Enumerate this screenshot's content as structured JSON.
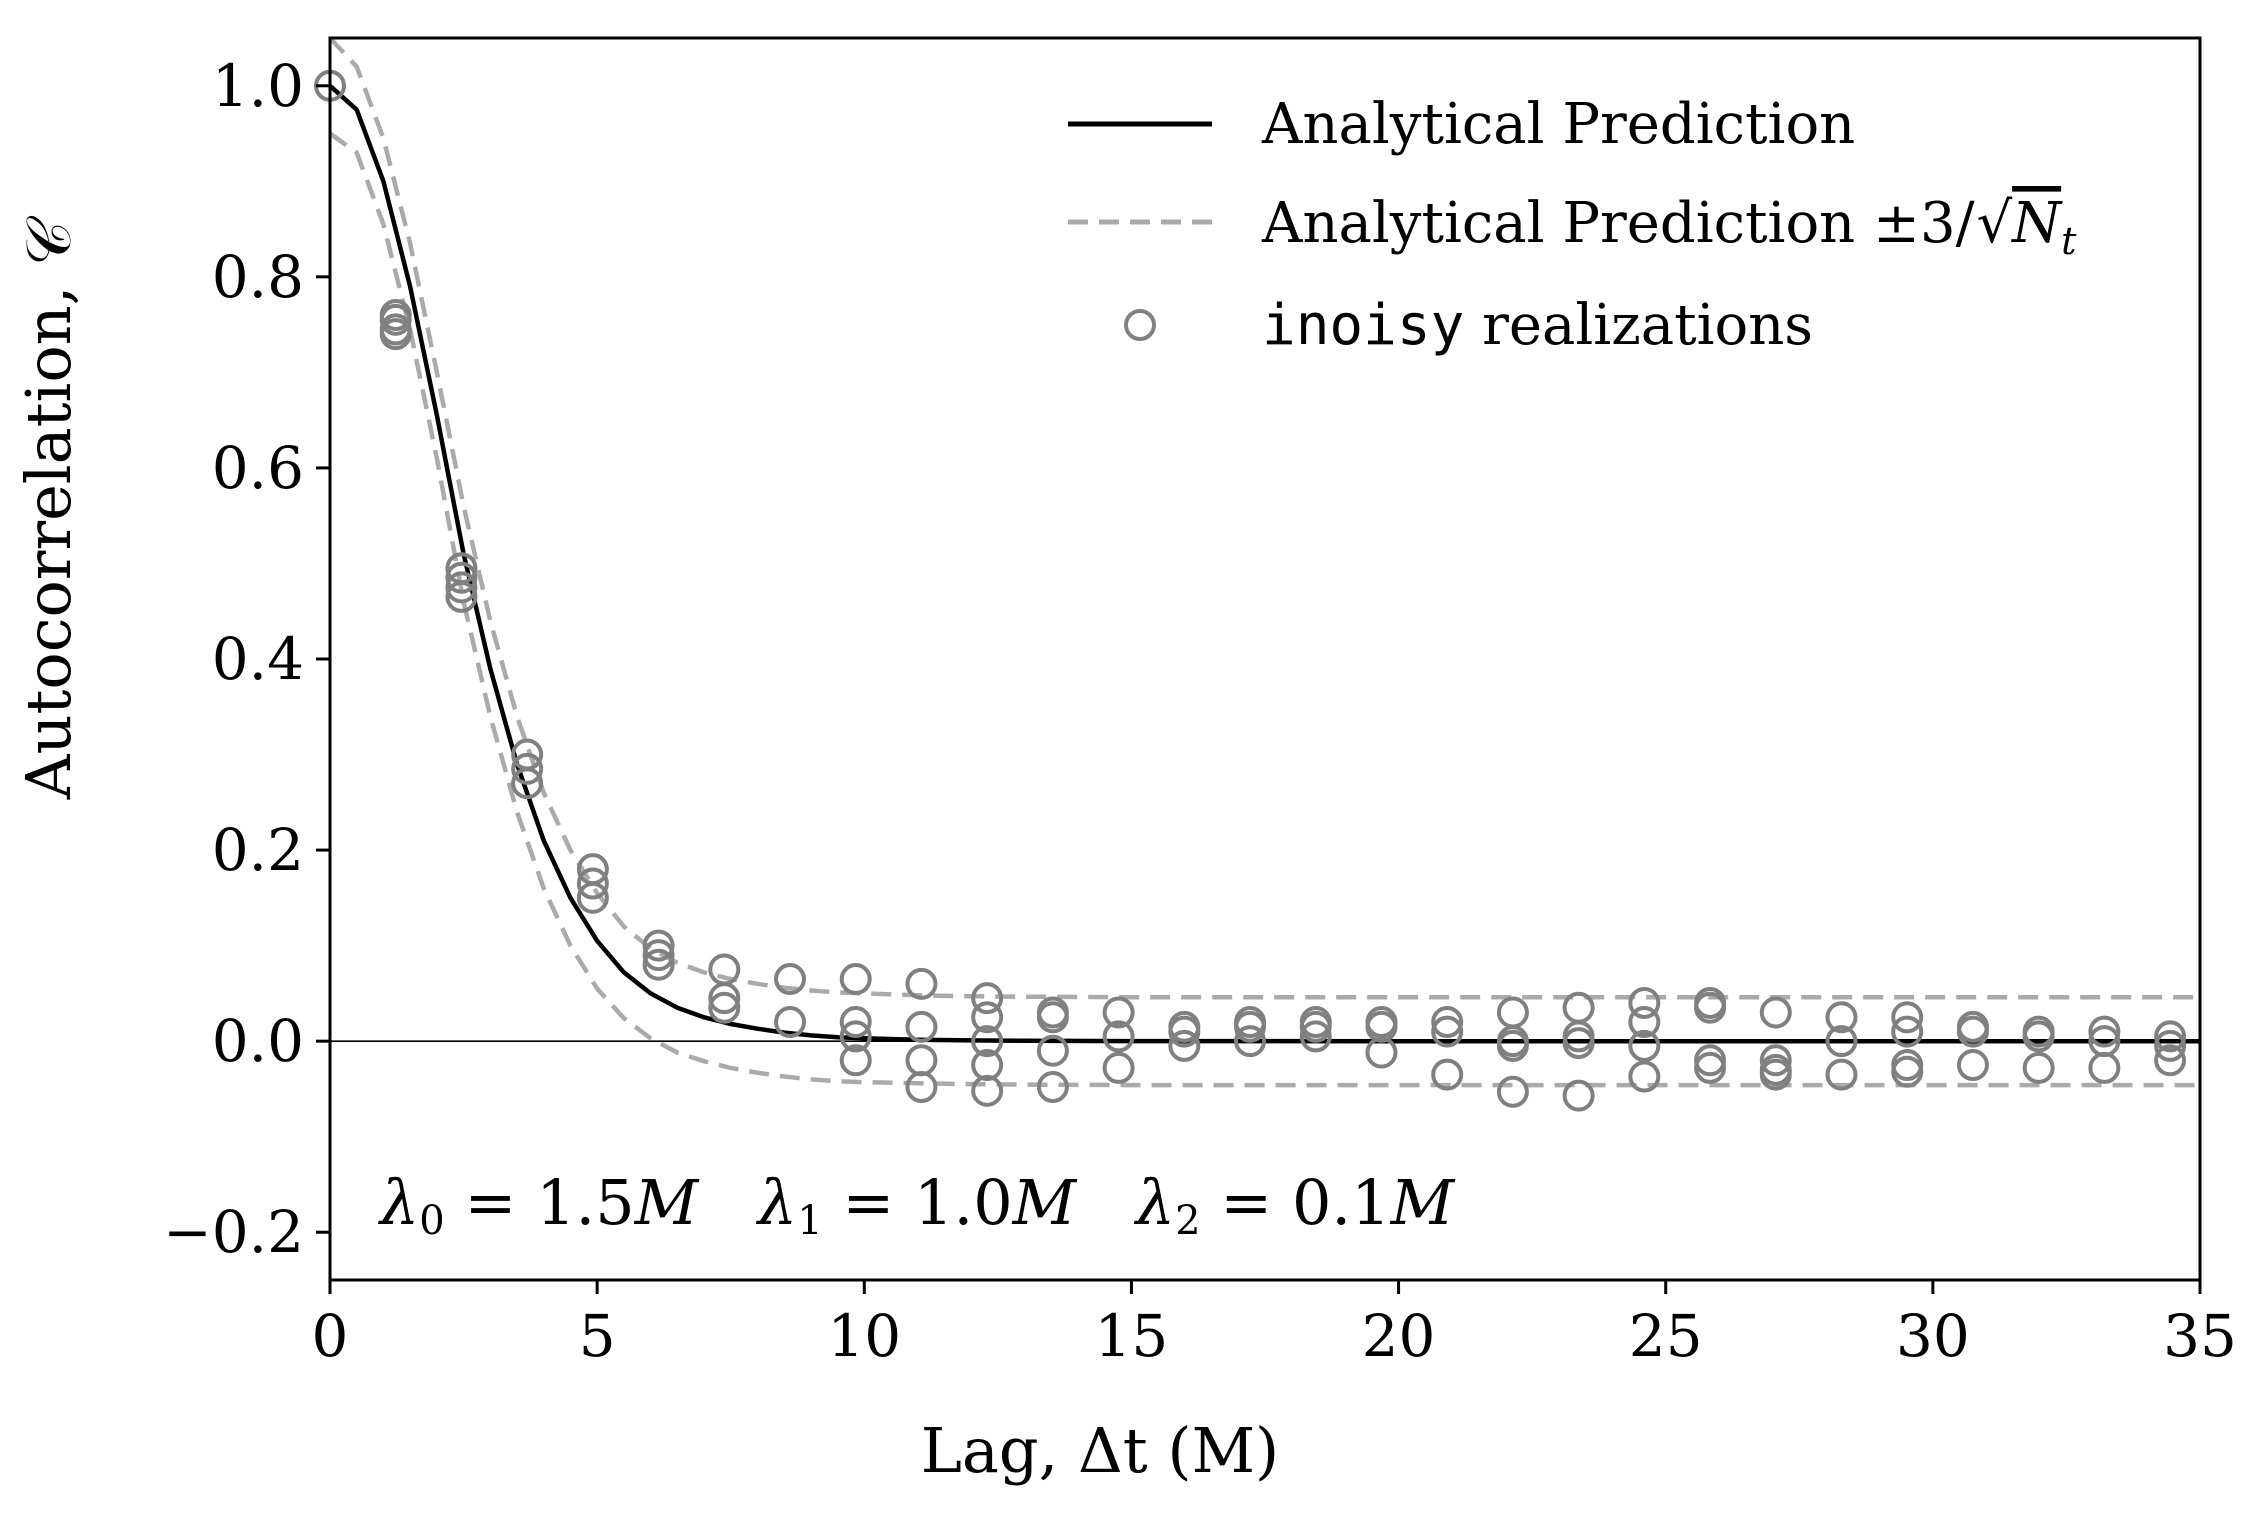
{
  "chart_data": {
    "type": "line",
    "xlabel": "Lag, Δt (M)",
    "ylabel": "Autocorrelation, 𝒞",
    "xlim": [
      0,
      35
    ],
    "ylim": [
      -0.25,
      1.05
    ],
    "xticks": [
      0,
      5,
      10,
      15,
      20,
      25,
      30,
      35
    ],
    "yticks": [
      -0.2,
      0.0,
      0.2,
      0.4,
      0.6,
      0.8,
      1.0
    ],
    "xtick_labels": [
      "0",
      "5",
      "10",
      "15",
      "20",
      "25",
      "30",
      "35"
    ],
    "ytick_labels": [
      "−0.2",
      "0.0",
      "0.2",
      "0.4",
      "0.6",
      "0.8",
      "1.0"
    ],
    "grid": false,
    "zero_line": true,
    "legend": {
      "position": "top-right",
      "entries": [
        {
          "label": "Analytical Prediction",
          "style": "solid",
          "color": "#000000"
        },
        {
          "label_prefix": "Analytical Prediction ±3/",
          "label_radical": "N",
          "label_sub": "t",
          "style": "dashed",
          "color": "#aaaaaa"
        },
        {
          "label_mono": "inoisy",
          "label_rest": " realizations",
          "style": "marker",
          "color": "#808080"
        }
      ]
    },
    "annotation": {
      "parts": [
        {
          "sym": "λ",
          "sub": "0",
          "val": " = 1.5",
          "unit": "M"
        },
        {
          "sym": "λ",
          "sub": "1",
          "val": " = 1.0",
          "unit": "M"
        },
        {
          "sym": "λ",
          "sub": "2",
          "val": " = 0.1",
          "unit": "M"
        }
      ]
    },
    "series": [
      {
        "name": "Analytical Prediction",
        "x": [
          0,
          0.5,
          1.0,
          1.5,
          2.0,
          2.5,
          3.0,
          3.5,
          4.0,
          4.5,
          5.0,
          5.5,
          6.0,
          6.5,
          7.0,
          7.5,
          8.0,
          8.5,
          9.0,
          9.5,
          10.0,
          11.0,
          12.0,
          13.0,
          15.0,
          20.0,
          25.0,
          30.0,
          35.0
        ],
        "values": [
          1.0,
          0.975,
          0.9,
          0.79,
          0.655,
          0.51,
          0.39,
          0.29,
          0.21,
          0.15,
          0.105,
          0.072,
          0.05,
          0.035,
          0.025,
          0.018,
          0.013,
          0.009,
          0.006,
          0.004,
          0.003,
          0.0015,
          0.0008,
          0.0004,
          0.0001,
          0.0,
          0.0,
          0.0,
          0.0
        ]
      },
      {
        "name": "Analytical Prediction +3/√Nt",
        "x": [
          0,
          0.5,
          1.0,
          1.5,
          2.0,
          2.5,
          3.0,
          3.5,
          4.0,
          4.5,
          5.0,
          5.5,
          6.0,
          6.5,
          7.0,
          7.5,
          8.0,
          8.5,
          9.0,
          9.5,
          10.0,
          11.0,
          12.0,
          13.0,
          15.0,
          20.0,
          25.0,
          30.0,
          35.0
        ],
        "values": [
          1.05,
          1.02,
          0.945,
          0.835,
          0.7,
          0.56,
          0.44,
          0.34,
          0.26,
          0.2,
          0.155,
          0.12,
          0.097,
          0.082,
          0.072,
          0.065,
          0.06,
          0.056,
          0.053,
          0.051,
          0.05,
          0.048,
          0.047,
          0.0465,
          0.046,
          0.046,
          0.046,
          0.046,
          0.046
        ]
      },
      {
        "name": "Analytical Prediction −3/√Nt",
        "x": [
          0,
          0.5,
          1.0,
          1.5,
          2.0,
          2.5,
          3.0,
          3.5,
          4.0,
          4.5,
          5.0,
          5.5,
          6.0,
          6.5,
          7.0,
          7.5,
          8.0,
          8.5,
          9.0,
          9.5,
          10.0,
          11.0,
          12.0,
          13.0,
          15.0,
          20.0,
          25.0,
          30.0,
          35.0
        ],
        "values": [
          0.95,
          0.93,
          0.855,
          0.745,
          0.61,
          0.46,
          0.34,
          0.24,
          0.16,
          0.1,
          0.055,
          0.024,
          0.003,
          -0.012,
          -0.021,
          -0.028,
          -0.033,
          -0.037,
          -0.04,
          -0.042,
          -0.043,
          -0.044,
          -0.045,
          -0.0455,
          -0.046,
          -0.046,
          -0.046,
          -0.046,
          -0.046
        ]
      },
      {
        "name": "inoisy realizations",
        "x": [
          0,
          1.23,
          1.23,
          1.23,
          1.23,
          2.46,
          2.46,
          2.46,
          2.46,
          3.69,
          3.69,
          3.69,
          4.92,
          4.92,
          4.92,
          6.15,
          6.15,
          6.15,
          7.38,
          7.38,
          7.38,
          8.61,
          8.61,
          9.84,
          9.84,
          9.84,
          9.84,
          11.07,
          11.07,
          11.07,
          11.07,
          12.3,
          12.3,
          12.3,
          12.3,
          12.3,
          13.53,
          13.53,
          13.53,
          13.53,
          14.76,
          14.76,
          14.76,
          15.99,
          15.99,
          15.99,
          17.22,
          17.22,
          17.22,
          18.45,
          18.45,
          18.45,
          19.68,
          19.68,
          19.68,
          20.91,
          20.91,
          20.91,
          22.14,
          22.14,
          22.14,
          22.14,
          23.37,
          23.37,
          23.37,
          23.37,
          24.6,
          24.6,
          24.6,
          24.6,
          25.83,
          25.83,
          25.83,
          25.83,
          27.06,
          27.06,
          27.06,
          27.06,
          28.29,
          28.29,
          28.29,
          29.52,
          29.52,
          29.52,
          29.52,
          30.75,
          30.75,
          30.75,
          31.98,
          31.98,
          31.98,
          33.21,
          33.21,
          33.21,
          34.44,
          34.44,
          34.44
        ],
        "values": [
          1.0,
          0.76,
          0.755,
          0.745,
          0.74,
          0.495,
          0.485,
          0.475,
          0.465,
          0.3,
          0.285,
          0.27,
          0.18,
          0.165,
          0.15,
          0.1,
          0.09,
          0.08,
          0.075,
          0.045,
          0.035,
          0.065,
          0.02,
          0.065,
          0.02,
          0.005,
          -0.02,
          0.06,
          0.015,
          -0.02,
          -0.048,
          0.045,
          0.025,
          0.0,
          -0.025,
          -0.052,
          0.03,
          0.025,
          -0.01,
          -0.048,
          0.03,
          0.005,
          -0.028,
          0.015,
          0.01,
          -0.005,
          0.02,
          0.015,
          0.0,
          0.02,
          0.015,
          0.005,
          0.02,
          0.015,
          -0.012,
          0.02,
          0.01,
          -0.035,
          0.03,
          0.0,
          -0.005,
          -0.053,
          0.035,
          0.005,
          -0.002,
          -0.057,
          0.04,
          0.02,
          -0.005,
          -0.037,
          0.04,
          0.035,
          -0.02,
          -0.028,
          0.03,
          -0.02,
          -0.03,
          -0.035,
          0.025,
          0.0,
          -0.035,
          0.025,
          0.01,
          -0.025,
          -0.032,
          0.015,
          0.01,
          -0.025,
          0.01,
          0.005,
          -0.028,
          0.01,
          0.0,
          -0.028,
          0.005,
          -0.005,
          -0.02
        ]
      }
    ]
  }
}
